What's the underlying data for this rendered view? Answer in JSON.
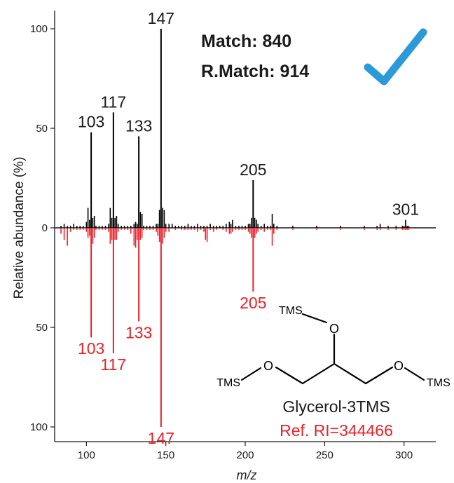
{
  "chart_data": {
    "type": "bar",
    "xlabel": "m/z",
    "ylabel": "Relative abundance (%)",
    "xlim": [
      80,
      320
    ],
    "ylim": [
      -100,
      100
    ],
    "xticks": [
      100,
      150,
      200,
      250,
      300
    ],
    "yticks": [
      {
        "value": 100,
        "label": "100"
      },
      {
        "value": 50,
        "label": "50"
      },
      {
        "value": 0,
        "label": "0"
      },
      {
        "value": -50,
        "label": "50"
      },
      {
        "value": -100,
        "label": "100"
      }
    ],
    "series": [
      {
        "color": "#000000",
        "x": [
          84,
          86,
          88,
          90,
          92,
          94,
          96,
          98,
          100,
          101,
          102,
          103,
          104,
          105,
          106,
          108,
          110,
          112,
          114,
          115,
          116,
          117,
          118,
          119,
          120,
          122,
          124,
          126,
          128,
          130,
          131,
          132,
          133,
          134,
          135,
          136,
          138,
          140,
          142,
          144,
          145,
          146,
          147,
          148,
          149,
          150,
          152,
          154,
          156,
          158,
          160,
          162,
          164,
          166,
          168,
          170,
          172,
          174,
          176,
          178,
          180,
          182,
          184,
          186,
          188,
          190,
          191,
          192,
          194,
          196,
          198,
          200,
          202,
          203,
          204,
          205,
          206,
          207,
          208,
          210,
          212,
          214,
          216,
          217,
          218,
          220,
          230,
          245,
          260,
          275,
          283,
          285,
          290,
          295,
          299,
          300,
          301,
          302,
          303
        ],
        "values": [
          1,
          2,
          1,
          1,
          2,
          1,
          1,
          1,
          3,
          10,
          4,
          48,
          5,
          6,
          1,
          1,
          1,
          1,
          2,
          10,
          5,
          58,
          5,
          6,
          2,
          1,
          1,
          1,
          1,
          2,
          3,
          2,
          46,
          8,
          7,
          1,
          1,
          1,
          1,
          2,
          2,
          9,
          100,
          10,
          9,
          2,
          2,
          2,
          1,
          1,
          1,
          1,
          2,
          1,
          1,
          2,
          1,
          1,
          1,
          2,
          1,
          1,
          1,
          1,
          2,
          3,
          2,
          4,
          1,
          1,
          1,
          1,
          2,
          2,
          5,
          24,
          5,
          4,
          2,
          1,
          2,
          1,
          1,
          7,
          2,
          1,
          1,
          1,
          1,
          1,
          1,
          2,
          1,
          1,
          1,
          1,
          4,
          1,
          1
        ]
      },
      {
        "color": "#e8212a",
        "x": [
          84,
          86,
          88,
          90,
          92,
          94,
          96,
          98,
          100,
          101,
          102,
          103,
          104,
          105,
          106,
          108,
          110,
          112,
          114,
          115,
          116,
          117,
          118,
          119,
          120,
          122,
          124,
          126,
          128,
          130,
          131,
          132,
          133,
          134,
          135,
          136,
          138,
          140,
          142,
          144,
          145,
          146,
          147,
          148,
          149,
          150,
          152,
          156,
          160,
          162,
          164,
          166,
          168,
          170,
          172,
          174,
          175,
          176,
          178,
          180,
          182,
          186,
          188,
          190,
          191,
          192,
          194,
          196,
          198,
          200,
          202,
          203,
          204,
          205,
          206,
          207,
          208,
          210,
          212,
          214,
          216,
          217,
          218,
          220,
          230,
          245,
          260,
          275,
          283,
          285,
          290,
          295,
          299,
          300,
          301,
          302,
          303
        ],
        "values": [
          -3,
          -6,
          -9,
          -2,
          -1,
          -1,
          -1,
          -1,
          -2,
          -5,
          -4,
          -55,
          -8,
          -5,
          -1,
          -1,
          -1,
          -1,
          -2,
          -8,
          -6,
          -63,
          -6,
          -6,
          -2,
          -1,
          -1,
          -1,
          -3,
          -9,
          -10,
          -6,
          -47,
          -6,
          -5,
          -1,
          -1,
          -1,
          -1,
          -2,
          -4,
          -7,
          -100,
          -8,
          -5,
          -2,
          -2,
          -1,
          -1,
          -1,
          -1,
          -1,
          -1,
          -2,
          -1,
          -2,
          -6,
          -7,
          -1,
          -2,
          -1,
          -1,
          -2,
          -3,
          -3,
          -2,
          -1,
          -1,
          -1,
          -1,
          -2,
          -3,
          -5,
          -32,
          -5,
          -3,
          -2,
          -1,
          -2,
          -1,
          -1,
          -9,
          -3,
          -1,
          -1,
          -1,
          -1,
          -1,
          -1,
          -1,
          -1,
          -1,
          -1,
          -1,
          -1,
          -1,
          -1
        ]
      }
    ],
    "peak_labels": [
      {
        "x": 103,
        "y": 48,
        "text": "103",
        "color": "#1a1a1a",
        "side": "top"
      },
      {
        "x": 117,
        "y": 58,
        "text": "117",
        "color": "#1a1a1a",
        "side": "top"
      },
      {
        "x": 133,
        "y": 46,
        "text": "133",
        "color": "#1a1a1a",
        "side": "top"
      },
      {
        "x": 147,
        "y": 100,
        "text": "147",
        "color": "#1a1a1a",
        "side": "top"
      },
      {
        "x": 205,
        "y": 24,
        "text": "205",
        "color": "#1a1a1a",
        "side": "top"
      },
      {
        "x": 301,
        "y": 4,
        "text": "301",
        "color": "#1a1a1a",
        "side": "top"
      },
      {
        "x": 103,
        "y": -55,
        "text": "103",
        "color": "#e8212a",
        "side": "bottom"
      },
      {
        "x": 117,
        "y": -63,
        "text": "117",
        "color": "#e8212a",
        "side": "bottom"
      },
      {
        "x": 133,
        "y": -47,
        "text": "133",
        "color": "#e8212a",
        "side": "bottom"
      },
      {
        "x": 147,
        "y": -100,
        "text": "147",
        "color": "#e8212a",
        "side": "bottom"
      },
      {
        "x": 205,
        "y": -32,
        "text": "205",
        "color": "#e8212a",
        "side": "bottom"
      }
    ],
    "annotations": {
      "match": "Match: 840",
      "rmatch": "R.Match: 914",
      "compound": "Glycerol-3TMS",
      "ref_ri": "Ref. RI=344466"
    },
    "structure_labels": {
      "tms_top": "TMS",
      "tms_left": "TMS",
      "tms_right": "TMS",
      "o_top": "O",
      "o_left": "O",
      "o_right": "O"
    },
    "colors": {
      "library": "#e8212a",
      "check": "#2a9bd8",
      "axis": "#1a1a1a"
    },
    "grid": false
  }
}
